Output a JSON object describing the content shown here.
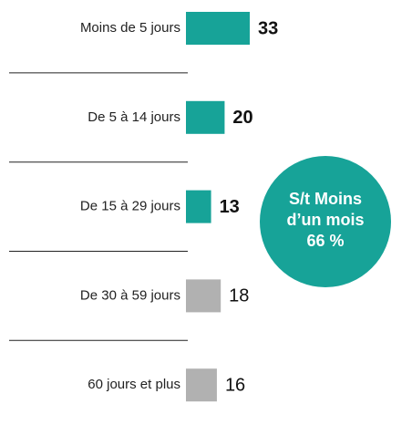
{
  "chart_data": {
    "type": "barh",
    "categories": [
      "Moins de 5 jours",
      "De 5 à 14 jours",
      "De 15 à 29 jours",
      "De 30 à 59 jours",
      "60 jours et plus"
    ],
    "values": [
      33,
      20,
      13,
      18,
      16
    ],
    "colors": [
      "#17a398",
      "#17a398",
      "#17a398",
      "#b1b1b1",
      "#b1b1b1"
    ],
    "annotation": {
      "lines": [
        "S/t Moins",
        "d’un mois",
        "66 %"
      ],
      "color": "#17a398"
    }
  }
}
